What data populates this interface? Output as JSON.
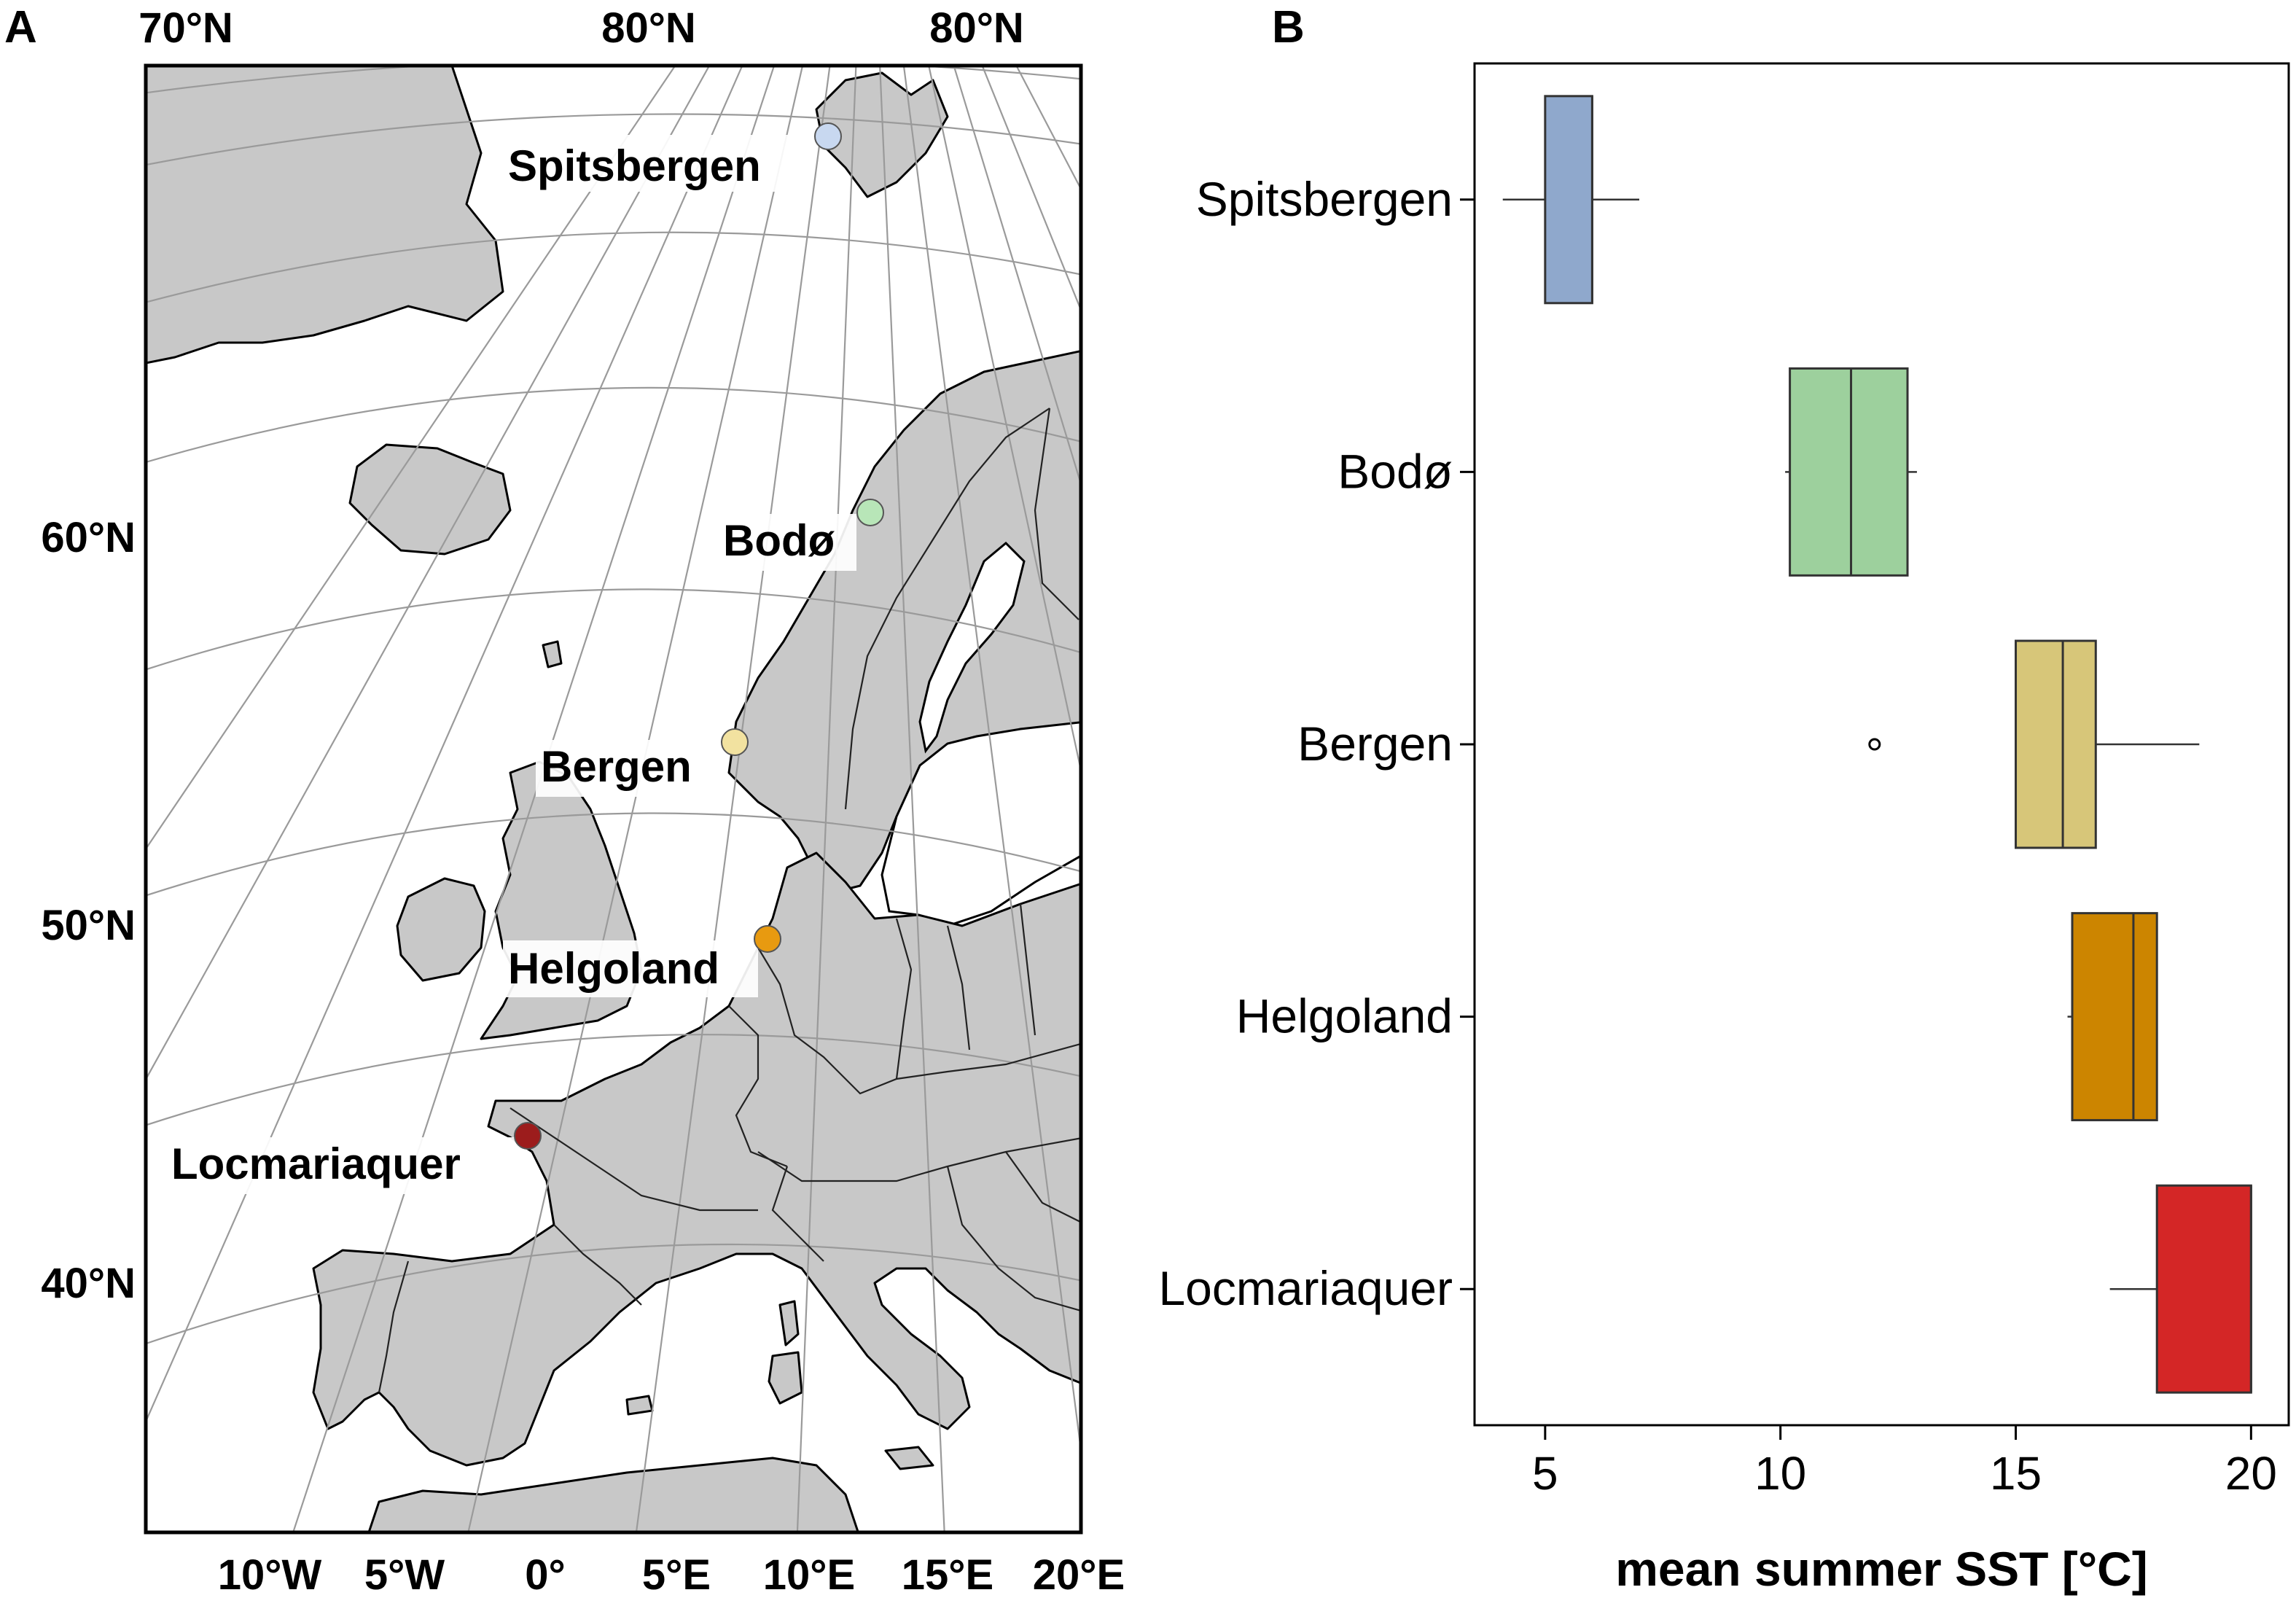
{
  "panels": {
    "map_letter": "A",
    "chart_letter": "B"
  },
  "map": {
    "top_ticks": [
      "70°N",
      "80°N",
      "80°N"
    ],
    "left_ticks": [
      "60°N",
      "50°N",
      "40°N"
    ],
    "bottom_ticks": [
      "10°W",
      "5°W",
      "0°",
      "5°E",
      "10°E",
      "15°E",
      "20°E"
    ],
    "sites": [
      {
        "name": "Spitsbergen",
        "color": "#c8d8f0"
      },
      {
        "name": "Bodø",
        "color": "#b8e6b8"
      },
      {
        "name": "Bergen",
        "color": "#f2e2a0"
      },
      {
        "name": "Helgoland",
        "color": "#e89a10"
      },
      {
        "name": "Locmariaquer",
        "color": "#9c1c1c"
      }
    ]
  },
  "chart_data": {
    "type": "boxplot",
    "orientation": "horizontal",
    "categories": [
      "Spitsbergen",
      "Bodø",
      "Bergen",
      "Helgoland",
      "Locmariaquer"
    ],
    "xlabel": "mean summer SST [°C]",
    "xlim": [
      3.5,
      20.8
    ],
    "xticks": [
      5,
      10,
      15,
      20
    ],
    "series": [
      {
        "name": "Spitsbergen",
        "whisker_low": 4.1,
        "q1": 5.0,
        "median": 6.0,
        "q3": 6.0,
        "whisker_high": 7.0,
        "outliers": [],
        "color": "#8fa8cc"
      },
      {
        "name": "Bodø",
        "whisker_low": 10.1,
        "q1": 10.2,
        "median": 11.5,
        "q3": 12.7,
        "whisker_high": 12.9,
        "outliers": [],
        "color": "#9dd09d"
      },
      {
        "name": "Bergen",
        "whisker_low": 15.0,
        "q1": 15.0,
        "median": 16.0,
        "q3": 16.7,
        "whisker_high": 18.9,
        "outliers": [
          12.0
        ],
        "color": "#d7c679"
      },
      {
        "name": "Helgoland",
        "whisker_low": 16.1,
        "q1": 16.2,
        "median": 17.5,
        "q3": 18.0,
        "whisker_high": 18.0,
        "outliers": [],
        "color": "#cc8500"
      },
      {
        "name": "Locmariaquer",
        "whisker_low": 17.0,
        "q1": 18.0,
        "median": 20.0,
        "q3": 20.0,
        "whisker_high": 20.0,
        "outliers": [],
        "color": "#d42626"
      }
    ]
  }
}
